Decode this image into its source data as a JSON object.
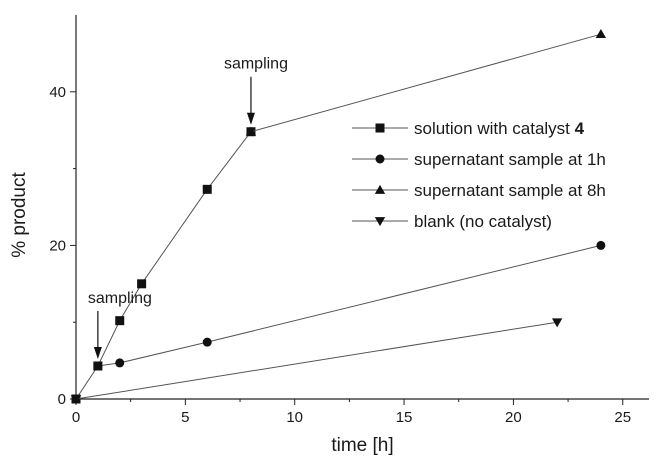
{
  "chart_data": {
    "type": "line",
    "title": "",
    "xlabel": "time [h]",
    "ylabel": "% product",
    "xlim": [
      0,
      26.2
    ],
    "ylim": [
      0,
      50
    ],
    "x_ticks": [
      0,
      5,
      10,
      15,
      20,
      25
    ],
    "y_ticks": [
      0,
      20,
      40
    ],
    "grid": false,
    "legend_position": "right",
    "series": [
      {
        "name": "solution with catalyst",
        "name_suffix_bold": "4",
        "marker": "square",
        "points": [
          [
            0,
            0
          ],
          [
            1,
            4.3
          ],
          [
            2,
            10.2
          ],
          [
            3,
            15.0
          ],
          [
            6,
            27.3
          ],
          [
            8,
            34.8
          ]
        ]
      },
      {
        "name": "supernatant sample at 1h",
        "marker": "circle",
        "points": [
          [
            1,
            4.3
          ],
          [
            2,
            4.7
          ],
          [
            6,
            7.4
          ],
          [
            24,
            20.0
          ]
        ]
      },
      {
        "name": "supernatant sample at 8h",
        "marker": "triangle-up",
        "points": [
          [
            8,
            34.8
          ],
          [
            24,
            47.5
          ]
        ]
      },
      {
        "name": "blank (no catalyst)",
        "marker": "triangle-down",
        "points": [
          [
            0,
            0
          ],
          [
            22,
            10.0
          ]
        ]
      }
    ],
    "annotations": [
      {
        "text": "sampling",
        "x": 1,
        "y": 4.3
      },
      {
        "text": "sampling",
        "x": 8,
        "y": 34.8
      }
    ],
    "colors": {
      "line": "#555555",
      "marker": "#111111",
      "axis": "#222222"
    }
  }
}
